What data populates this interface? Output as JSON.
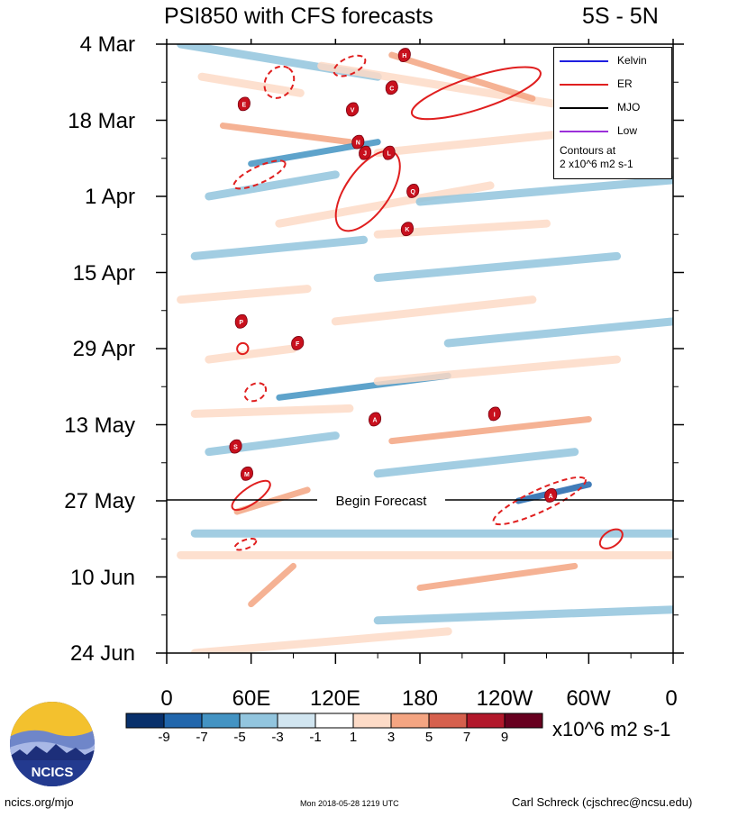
{
  "header": {
    "title": "PSI850 with CFS forecasts",
    "region": "5S - 5N"
  },
  "chart_data": {
    "type": "heatmap",
    "title": "PSI850 with CFS forecasts",
    "subtitle": "5S - 5N",
    "x_ticks": [
      "0",
      "60E",
      "120E",
      "180",
      "120W",
      "60W",
      "0"
    ],
    "x_tick_longitudes": [
      0,
      60,
      120,
      180,
      240,
      300,
      360
    ],
    "y_ticks": [
      "4 Mar",
      "18 Mar",
      "1 Apr",
      "15 Apr",
      "29 Apr",
      "13 May",
      "27 May",
      "10 Jun",
      "24 Jun"
    ],
    "y_tick_dates": [
      "2018-03-04",
      "2018-03-18",
      "2018-04-01",
      "2018-04-15",
      "2018-04-29",
      "2018-05-13",
      "2018-05-27",
      "2018-06-10",
      "2018-06-24"
    ],
    "x_range": [
      0,
      360
    ],
    "y_range": [
      "2018-03-04",
      "2018-06-24"
    ],
    "forecast_start": "2018-05-27",
    "forecast_label": "Begin Forecast",
    "colorbar": {
      "levels": [
        "-9",
        "-7",
        "-5",
        "-3",
        "-1",
        "1",
        "3",
        "5",
        "7",
        "9"
      ],
      "level_values": [
        -9,
        -7,
        -5,
        -3,
        -1,
        1,
        3,
        5,
        7,
        9
      ],
      "colors": [
        "#08306b",
        "#2166ac",
        "#4393c3",
        "#92c5de",
        "#d1e5f0",
        "#ffffff",
        "#fddbc7",
        "#f4a582",
        "#d6604d",
        "#b2182b",
        "#67001f"
      ],
      "units": "x10^6 m2 s-1"
    },
    "legend": {
      "entries": [
        {
          "name": "Kelvin",
          "color": "#1f1fe0"
        },
        {
          "name": "ER",
          "color": "#e01f1f"
        },
        {
          "name": "MJO",
          "color": "#000000"
        },
        {
          "name": "Low",
          "color": "#9b30d9"
        }
      ],
      "note_line1": "Contours at",
      "note_line2": "2 x10^6 m2 s-1"
    },
    "anomaly_streaks": [
      {
        "lon": [
          10,
          150
        ],
        "date": [
          "2018-03-04",
          "2018-03-10"
        ],
        "sign": -1,
        "mag": 3
      },
      {
        "lon": [
          25,
          95
        ],
        "date": [
          "2018-03-10",
          "2018-03-13"
        ],
        "sign": 1,
        "mag": 3
      },
      {
        "lon": [
          110,
          300
        ],
        "date": [
          "2018-03-08",
          "2018-03-16"
        ],
        "sign": 1,
        "mag": 3
      },
      {
        "lon": [
          160,
          260
        ],
        "date": [
          "2018-03-06",
          "2018-03-14"
        ],
        "sign": 1,
        "mag": 5
      },
      {
        "lon": [
          40,
          130
        ],
        "date": [
          "2018-03-19",
          "2018-03-22"
        ],
        "sign": 1,
        "mag": 5
      },
      {
        "lon": [
          60,
          150
        ],
        "date": [
          "2018-03-26",
          "2018-03-22"
        ],
        "sign": -1,
        "mag": 5
      },
      {
        "lon": [
          150,
          300
        ],
        "date": [
          "2018-03-24",
          "2018-03-20"
        ],
        "sign": 1,
        "mag": 3
      },
      {
        "lon": [
          30,
          120
        ],
        "date": [
          "2018-04-01",
          "2018-03-28"
        ],
        "sign": -1,
        "mag": 3
      },
      {
        "lon": [
          80,
          230
        ],
        "date": [
          "2018-04-06",
          "2018-03-30"
        ],
        "sign": 1,
        "mag": 3
      },
      {
        "lon": [
          180,
          360
        ],
        "date": [
          "2018-04-02",
          "2018-03-29"
        ],
        "sign": -1,
        "mag": 3
      },
      {
        "lon": [
          20,
          140
        ],
        "date": [
          "2018-04-12",
          "2018-04-09"
        ],
        "sign": -1,
        "mag": 3
      },
      {
        "lon": [
          150,
          320
        ],
        "date": [
          "2018-04-16",
          "2018-04-12"
        ],
        "sign": -1,
        "mag": 3
      },
      {
        "lon": [
          150,
          270
        ],
        "date": [
          "2018-04-08",
          "2018-04-06"
        ],
        "sign": 1,
        "mag": 3
      },
      {
        "lon": [
          10,
          100
        ],
        "date": [
          "2018-04-20",
          "2018-04-18"
        ],
        "sign": 1,
        "mag": 3
      },
      {
        "lon": [
          120,
          260
        ],
        "date": [
          "2018-04-24",
          "2018-04-20"
        ],
        "sign": 1,
        "mag": 3
      },
      {
        "lon": [
          200,
          360
        ],
        "date": [
          "2018-04-28",
          "2018-04-24"
        ],
        "sign": -1,
        "mag": 3
      },
      {
        "lon": [
          30,
          90
        ],
        "date": [
          "2018-05-01",
          "2018-04-29"
        ],
        "sign": 1,
        "mag": 3
      },
      {
        "lon": [
          80,
          200
        ],
        "date": [
          "2018-05-08",
          "2018-05-04"
        ],
        "sign": -1,
        "mag": 5
      },
      {
        "lon": [
          150,
          320
        ],
        "date": [
          "2018-05-05",
          "2018-05-01"
        ],
        "sign": 1,
        "mag": 3
      },
      {
        "lon": [
          20,
          130
        ],
        "date": [
          "2018-05-11",
          "2018-05-10"
        ],
        "sign": 1,
        "mag": 3
      },
      {
        "lon": [
          160,
          300
        ],
        "date": [
          "2018-05-16",
          "2018-05-12"
        ],
        "sign": 1,
        "mag": 5
      },
      {
        "lon": [
          30,
          120
        ],
        "date": [
          "2018-05-18",
          "2018-05-15"
        ],
        "sign": -1,
        "mag": 3
      },
      {
        "lon": [
          150,
          290
        ],
        "date": [
          "2018-05-22",
          "2018-05-18"
        ],
        "sign": -1,
        "mag": 3
      },
      {
        "lon": [
          250,
          300
        ],
        "date": [
          "2018-05-27",
          "2018-05-24"
        ],
        "sign": -1,
        "mag": 7
      },
      {
        "lon": [
          50,
          100
        ],
        "date": [
          "2018-05-29",
          "2018-05-25"
        ],
        "sign": 1,
        "mag": 5
      },
      {
        "lon": [
          20,
          360
        ],
        "date": [
          "2018-06-02",
          "2018-06-02"
        ],
        "sign": -1,
        "mag": 3
      },
      {
        "lon": [
          10,
          360
        ],
        "date": [
          "2018-06-06",
          "2018-06-06"
        ],
        "sign": 1,
        "mag": 3
      },
      {
        "lon": [
          180,
          290
        ],
        "date": [
          "2018-06-12",
          "2018-06-08"
        ],
        "sign": 1,
        "mag": 5
      },
      {
        "lon": [
          60,
          90
        ],
        "date": [
          "2018-06-15",
          "2018-06-08"
        ],
        "sign": 1,
        "mag": 5
      },
      {
        "lon": [
          150,
          360
        ],
        "date": [
          "2018-06-18",
          "2018-06-16"
        ],
        "sign": -1,
        "mag": 3
      },
      {
        "lon": [
          20,
          200
        ],
        "date": [
          "2018-06-24",
          "2018-06-20"
        ],
        "sign": 1,
        "mag": 3
      }
    ],
    "contours_er": [
      {
        "lon": 80,
        "date": "2018-03-11",
        "rlon": 12,
        "rdays": 2.5,
        "angle": -55,
        "style": "dashed"
      },
      {
        "lon": 130,
        "date": "2018-03-08",
        "rlon": 12,
        "rdays": 1.5,
        "angle": -25,
        "style": "dashed"
      },
      {
        "lon": 66,
        "date": "2018-03-28",
        "rlon": 20,
        "rdays": 1.5,
        "angle": -25,
        "style": "dashed"
      },
      {
        "lon": 220,
        "date": "2018-03-13",
        "rlon": 48,
        "rdays": 3,
        "angle": -18,
        "style": "solid"
      },
      {
        "lon": 143,
        "date": "2018-03-31",
        "rlon": 33,
        "rdays": 4,
        "angle": -55,
        "style": "solid"
      },
      {
        "lon": 54,
        "date": "2018-04-29",
        "rlon": 4,
        "rdays": 1,
        "angle": -40,
        "style": "solid"
      },
      {
        "lon": 63,
        "date": "2018-05-07",
        "rlon": 8,
        "rdays": 1.5,
        "angle": -30,
        "style": "dashed"
      },
      {
        "lon": 60,
        "date": "2018-05-26",
        "rlon": 16,
        "rdays": 1.5,
        "angle": -35,
        "style": "solid"
      },
      {
        "lon": 265,
        "date": "2018-05-27",
        "rlon": 36,
        "rdays": 2,
        "angle": -25,
        "style": "dashed"
      },
      {
        "lon": 56,
        "date": "2018-06-04",
        "rlon": 8,
        "rdays": 0.8,
        "angle": -20,
        "style": "dashed"
      },
      {
        "lon": 316,
        "date": "2018-06-03",
        "rlon": 9,
        "rdays": 1.4,
        "angle": -35,
        "style": "solid"
      }
    ],
    "storm_markers": [
      {
        "letter": "H",
        "lon": 169,
        "date": "2018-03-06"
      },
      {
        "letter": "C",
        "lon": 160,
        "date": "2018-03-12"
      },
      {
        "letter": "E",
        "lon": 55,
        "date": "2018-03-15"
      },
      {
        "letter": "V",
        "lon": 132,
        "date": "2018-03-16"
      },
      {
        "letter": "N",
        "lon": 136,
        "date": "2018-03-22"
      },
      {
        "letter": "J",
        "lon": 141,
        "date": "2018-03-24"
      },
      {
        "letter": "L",
        "lon": 158,
        "date": "2018-03-24"
      },
      {
        "letter": "Q",
        "lon": 175,
        "date": "2018-03-31"
      },
      {
        "letter": "K",
        "lon": 171,
        "date": "2018-04-07"
      },
      {
        "letter": "P",
        "lon": 53,
        "date": "2018-04-24"
      },
      {
        "letter": "F",
        "lon": 93,
        "date": "2018-04-28"
      },
      {
        "letter": "A",
        "lon": 148,
        "date": "2018-05-12"
      },
      {
        "letter": "I",
        "lon": 233,
        "date": "2018-05-11"
      },
      {
        "letter": "S",
        "lon": 49,
        "date": "2018-05-17"
      },
      {
        "letter": "M",
        "lon": 57,
        "date": "2018-05-22"
      },
      {
        "letter": "A",
        "lon": 273,
        "date": "2018-05-26"
      }
    ]
  },
  "footer": {
    "left": "ncics.org/mjo",
    "center": "Mon 2018-05-28 1219 UTC",
    "right": "Carl Schreck (cjschrec@ncsu.edu)",
    "logo_text": "NCICS"
  }
}
